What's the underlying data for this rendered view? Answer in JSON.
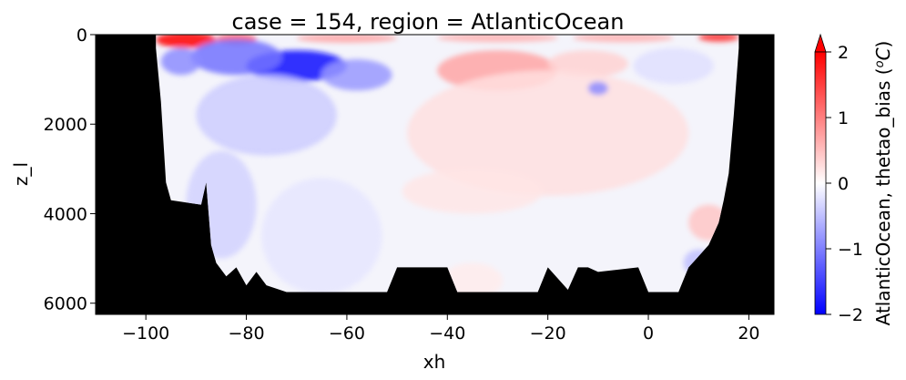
{
  "chart_data": {
    "type": "heatmap",
    "title": "case = 154, region = AtlanticOcean",
    "xlabel": "xh",
    "ylabel": "z_l",
    "xlim": [
      -110,
      25
    ],
    "ylim": [
      6250,
      0
    ],
    "y_inverted": true,
    "xticks": [
      -100,
      -80,
      -60,
      -40,
      -20,
      0,
      20
    ],
    "yticks": [
      0,
      2000,
      4000,
      6000
    ],
    "xtick_labels": [
      "−100",
      "−80",
      "−60",
      "−40",
      "−20",
      "0",
      "20"
    ],
    "ytick_labels": [
      "0",
      "2000",
      "4000",
      "6000"
    ],
    "mask_color": "#000000",
    "colormap": "bwr",
    "colorbar": {
      "label": "AtlanticOcean, thetao_bias (°C)",
      "label_main": "AtlanticOcean, thetao_bias (",
      "label_unit_o": "o",
      "label_unit_c": "C",
      "label_close": ")",
      "vmin": -2,
      "vmax": 2,
      "extend": "max",
      "ticks": [
        -2,
        -1,
        0,
        1,
        2
      ],
      "tick_labels": [
        "−2",
        "−1",
        "0",
        "1",
        "2"
      ],
      "colors": [
        "#0000ff",
        "#ffffff",
        "#ff0000"
      ]
    },
    "ocean_bottom": [
      [
        -98,
        300
      ],
      [
        -97,
        1500
      ],
      [
        -96,
        3300
      ],
      [
        -95,
        3700
      ],
      [
        -89,
        3800
      ],
      [
        -88,
        3300
      ],
      [
        -87,
        4700
      ],
      [
        -86,
        5100
      ],
      [
        -84,
        5400
      ],
      [
        -82,
        5200
      ],
      [
        -80,
        5600
      ],
      [
        -78,
        5300
      ],
      [
        -76,
        5600
      ],
      [
        -72,
        5750
      ],
      [
        -70,
        5750
      ],
      [
        -52,
        5750
      ],
      [
        -50,
        5200
      ],
      [
        -40,
        5200
      ],
      [
        -38,
        5750
      ],
      [
        -22,
        5750
      ],
      [
        -20,
        5200
      ],
      [
        -16,
        5700
      ],
      [
        -14,
        5200
      ],
      [
        -12,
        5200
      ],
      [
        -10,
        5300
      ],
      [
        -2,
        5200
      ],
      [
        0,
        5750
      ],
      [
        6,
        5750
      ],
      [
        8,
        5200
      ],
      [
        12,
        4700
      ],
      [
        14,
        4200
      ],
      [
        15,
        3700
      ],
      [
        16,
        3100
      ],
      [
        17,
        1800
      ],
      [
        18,
        300
      ]
    ],
    "bias_anomalies": [
      {
        "x": -92,
        "z": 120,
        "rx": 6,
        "rz": 180,
        "value": 2.0
      },
      {
        "x": -82,
        "z": 100,
        "rx": 4,
        "rz": 120,
        "value": 1.3
      },
      {
        "x": -60,
        "z": 80,
        "rx": 10,
        "rz": 100,
        "value": 0.7
      },
      {
        "x": -30,
        "z": 70,
        "rx": 12,
        "rz": 100,
        "value": 0.6
      },
      {
        "x": -5,
        "z": 70,
        "rx": 10,
        "rz": 100,
        "value": 0.6
      },
      {
        "x": 14,
        "z": 60,
        "rx": 4,
        "rz": 100,
        "value": 1.6
      },
      {
        "x": -70,
        "z": 700,
        "rx": 10,
        "rz": 350,
        "value": -1.9
      },
      {
        "x": -82,
        "z": 500,
        "rx": 9,
        "rz": 400,
        "value": -1.1
      },
      {
        "x": -93,
        "z": 600,
        "rx": 4,
        "rz": 300,
        "value": -0.9
      },
      {
        "x": -58,
        "z": 900,
        "rx": 7,
        "rz": 350,
        "value": -0.8
      },
      {
        "x": -76,
        "z": 1800,
        "rx": 14,
        "rz": 900,
        "value": -0.4
      },
      {
        "x": -85,
        "z": 3800,
        "rx": 7,
        "rz": 1200,
        "value": -0.35
      },
      {
        "x": -65,
        "z": 4500,
        "rx": 12,
        "rz": 1300,
        "value": -0.2
      },
      {
        "x": -30,
        "z": 800,
        "rx": 12,
        "rz": 450,
        "value": 0.7
      },
      {
        "x": -12,
        "z": 650,
        "rx": 8,
        "rz": 300,
        "value": 0.35
      },
      {
        "x": -20,
        "z": 2200,
        "rx": 28,
        "rz": 1400,
        "value": 0.25
      },
      {
        "x": -35,
        "z": 3500,
        "rx": 14,
        "rz": 500,
        "value": 0.2
      },
      {
        "x": -10,
        "z": 1200,
        "rx": 2,
        "rz": 150,
        "value": -0.9
      },
      {
        "x": 5,
        "z": 700,
        "rx": 8,
        "rz": 400,
        "value": -0.25
      },
      {
        "x": 12,
        "z": 4200,
        "rx": 4,
        "rz": 400,
        "value": 0.45
      },
      {
        "x": 10,
        "z": 5100,
        "rx": 3,
        "rz": 300,
        "value": -0.5
      },
      {
        "x": -35,
        "z": 5500,
        "rx": 6,
        "rz": 400,
        "value": 0.15
      }
    ]
  }
}
